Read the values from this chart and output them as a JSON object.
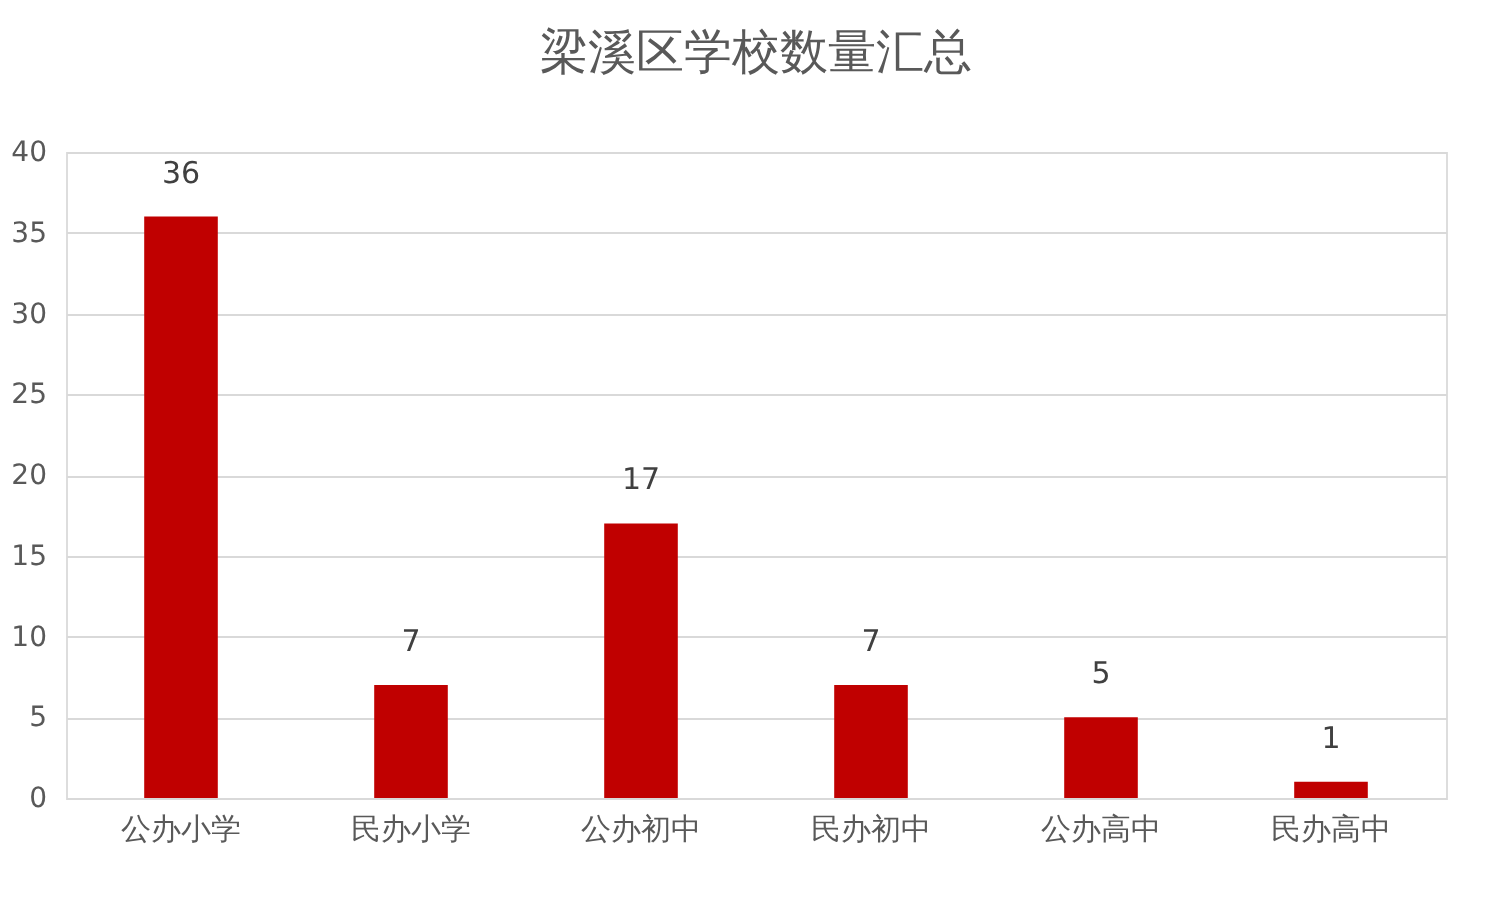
{
  "chart_data": {
    "type": "bar",
    "title": "梁溪区学校数量汇总",
    "categories": [
      "公办小学",
      "民办小学",
      "公办初中",
      "民办初中",
      "公办高中",
      "民办高中"
    ],
    "values": [
      36,
      7,
      17,
      7,
      5,
      1
    ],
    "color": "#c00000",
    "ylim": [
      0,
      40
    ],
    "yticks": [
      0,
      5,
      10,
      15,
      20,
      25,
      30,
      35,
      40
    ],
    "grid": "y",
    "data_labels": true
  }
}
